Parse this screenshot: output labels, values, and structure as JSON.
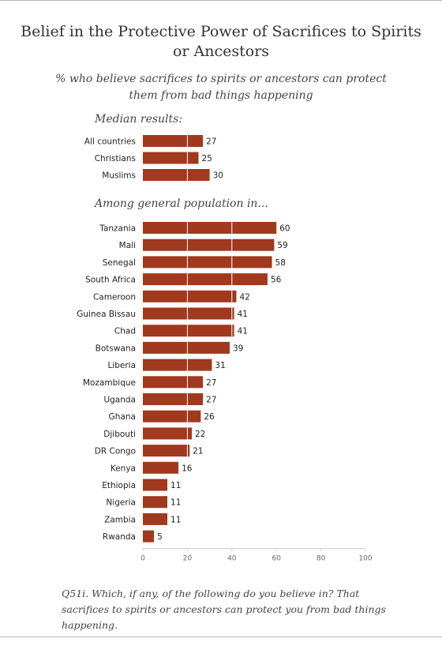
{
  "header": {
    "title": "Belief in the Protective Power of Sacrifices to Spirits or Ancestors",
    "subtitle": "% who believe sacrifices to spirits or ancestors can protect them from bad things happening"
  },
  "chart_data": {
    "type": "bar",
    "orientation": "horizontal",
    "title": "Belief in the Protective Power of Sacrifices to Spirits or Ancestors",
    "subtitle": "% who believe sacrifices to spirits or ancestors can protect them from bad things happening",
    "xlim": [
      0,
      100
    ],
    "xticks": [
      0,
      20,
      40,
      60,
      80,
      100
    ],
    "grid": true,
    "bar_color": "#a0391e",
    "gridline_color": "#ffffff",
    "groups": [
      {
        "label": "Median results:",
        "categories": [
          "All countries",
          "Christians",
          "Muslims"
        ],
        "values": [
          27,
          25,
          30
        ]
      },
      {
        "label": "Among general population in...",
        "categories": [
          "Tanzania",
          "Mali",
          "Senegal",
          "South Africa",
          "Cameroon",
          "Guinea Bissau",
          "Chad",
          "Botswana",
          "Liberia",
          "Mozambique",
          "Uganda",
          "Ghana",
          "Djibouti",
          "DR Congo",
          "Kenya",
          "Ethiopia",
          "Nigeria",
          "Zambia",
          "Rwanda"
        ],
        "values": [
          60,
          59,
          58,
          56,
          42,
          41,
          41,
          39,
          31,
          27,
          27,
          26,
          22,
          21,
          16,
          11,
          11,
          11,
          5
        ]
      }
    ]
  },
  "footnote": "Q51i. Which, if any, of the following do you believe in? That sacrifices to spirits or ancestors can protect you from bad things happening."
}
